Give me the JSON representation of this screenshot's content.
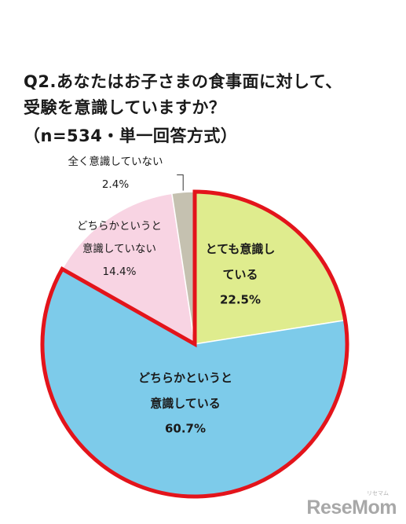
{
  "title": {
    "line1": "Q2.あなたはお子さまの食事面に対して、",
    "line2": "受験を意識していますか？",
    "line3": "（n=534・単一回答方式）"
  },
  "chart_data": {
    "type": "pie",
    "title": "Q2.あなたはお子さまの食事面に対して、受験を意識していますか？（n=534・単一回答方式）",
    "slices": [
      {
        "label_lines": [
          "とても意識し",
          "ている"
        ],
        "value": 22.5,
        "value_text": "22.5%",
        "color": "#dfec8e",
        "highlight": true
      },
      {
        "label_lines": [
          "どちらかというと",
          "意識している"
        ],
        "value": 60.7,
        "value_text": "60.7%",
        "color": "#7dcbea",
        "highlight": true
      },
      {
        "label_lines": [
          "どちらかというと",
          "意識していない"
        ],
        "value": 14.4,
        "value_text": "14.4%",
        "color": "#f8d4e3",
        "highlight": false
      },
      {
        "label_lines": [
          "全く意識していない"
        ],
        "value": 2.4,
        "value_text": "2.4%",
        "color": "#c5c1b0",
        "highlight": false
      }
    ],
    "highlight_color": "#e3141b"
  },
  "logo": {
    "text": "ReseMom",
    "subtext": "リセマム"
  }
}
